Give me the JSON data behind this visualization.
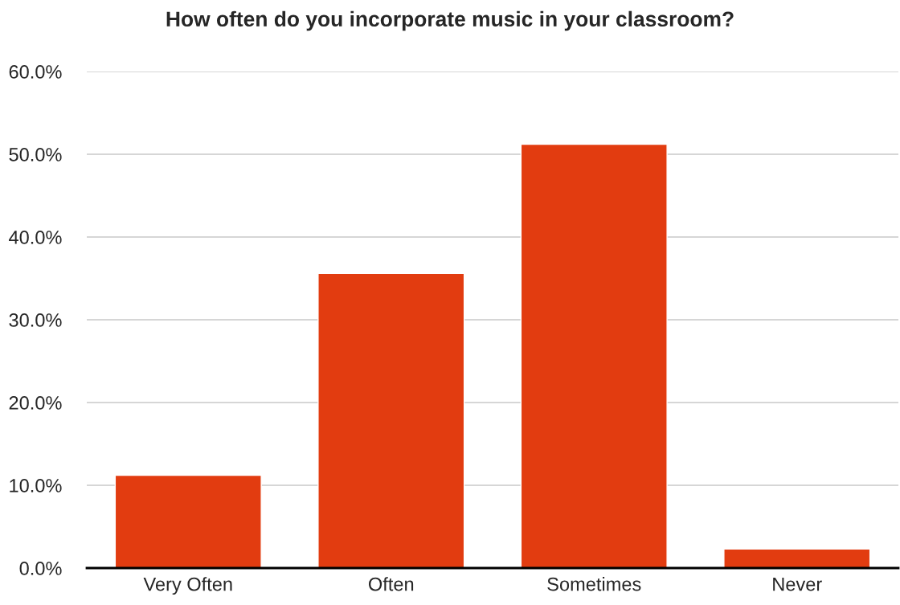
{
  "chart_data": {
    "type": "bar",
    "title": "How often do you incorporate music in your classroom?",
    "categories": [
      "Very Often",
      "Often",
      "Sometimes",
      "Never"
    ],
    "values": [
      11.2,
      35.6,
      51.2,
      2.3
    ],
    "color": "#e23c10",
    "ylim": [
      0,
      60
    ],
    "yticks": [
      {
        "value": 0,
        "label": "0.0%"
      },
      {
        "value": 10,
        "label": "10.0%"
      },
      {
        "value": 20,
        "label": "20.0%"
      },
      {
        "value": 30,
        "label": "30.0%"
      },
      {
        "value": 40,
        "label": "40.0%"
      },
      {
        "value": 50,
        "label": "50.0%"
      },
      {
        "value": 60,
        "label": "60.0%"
      }
    ],
    "grid": "y"
  }
}
